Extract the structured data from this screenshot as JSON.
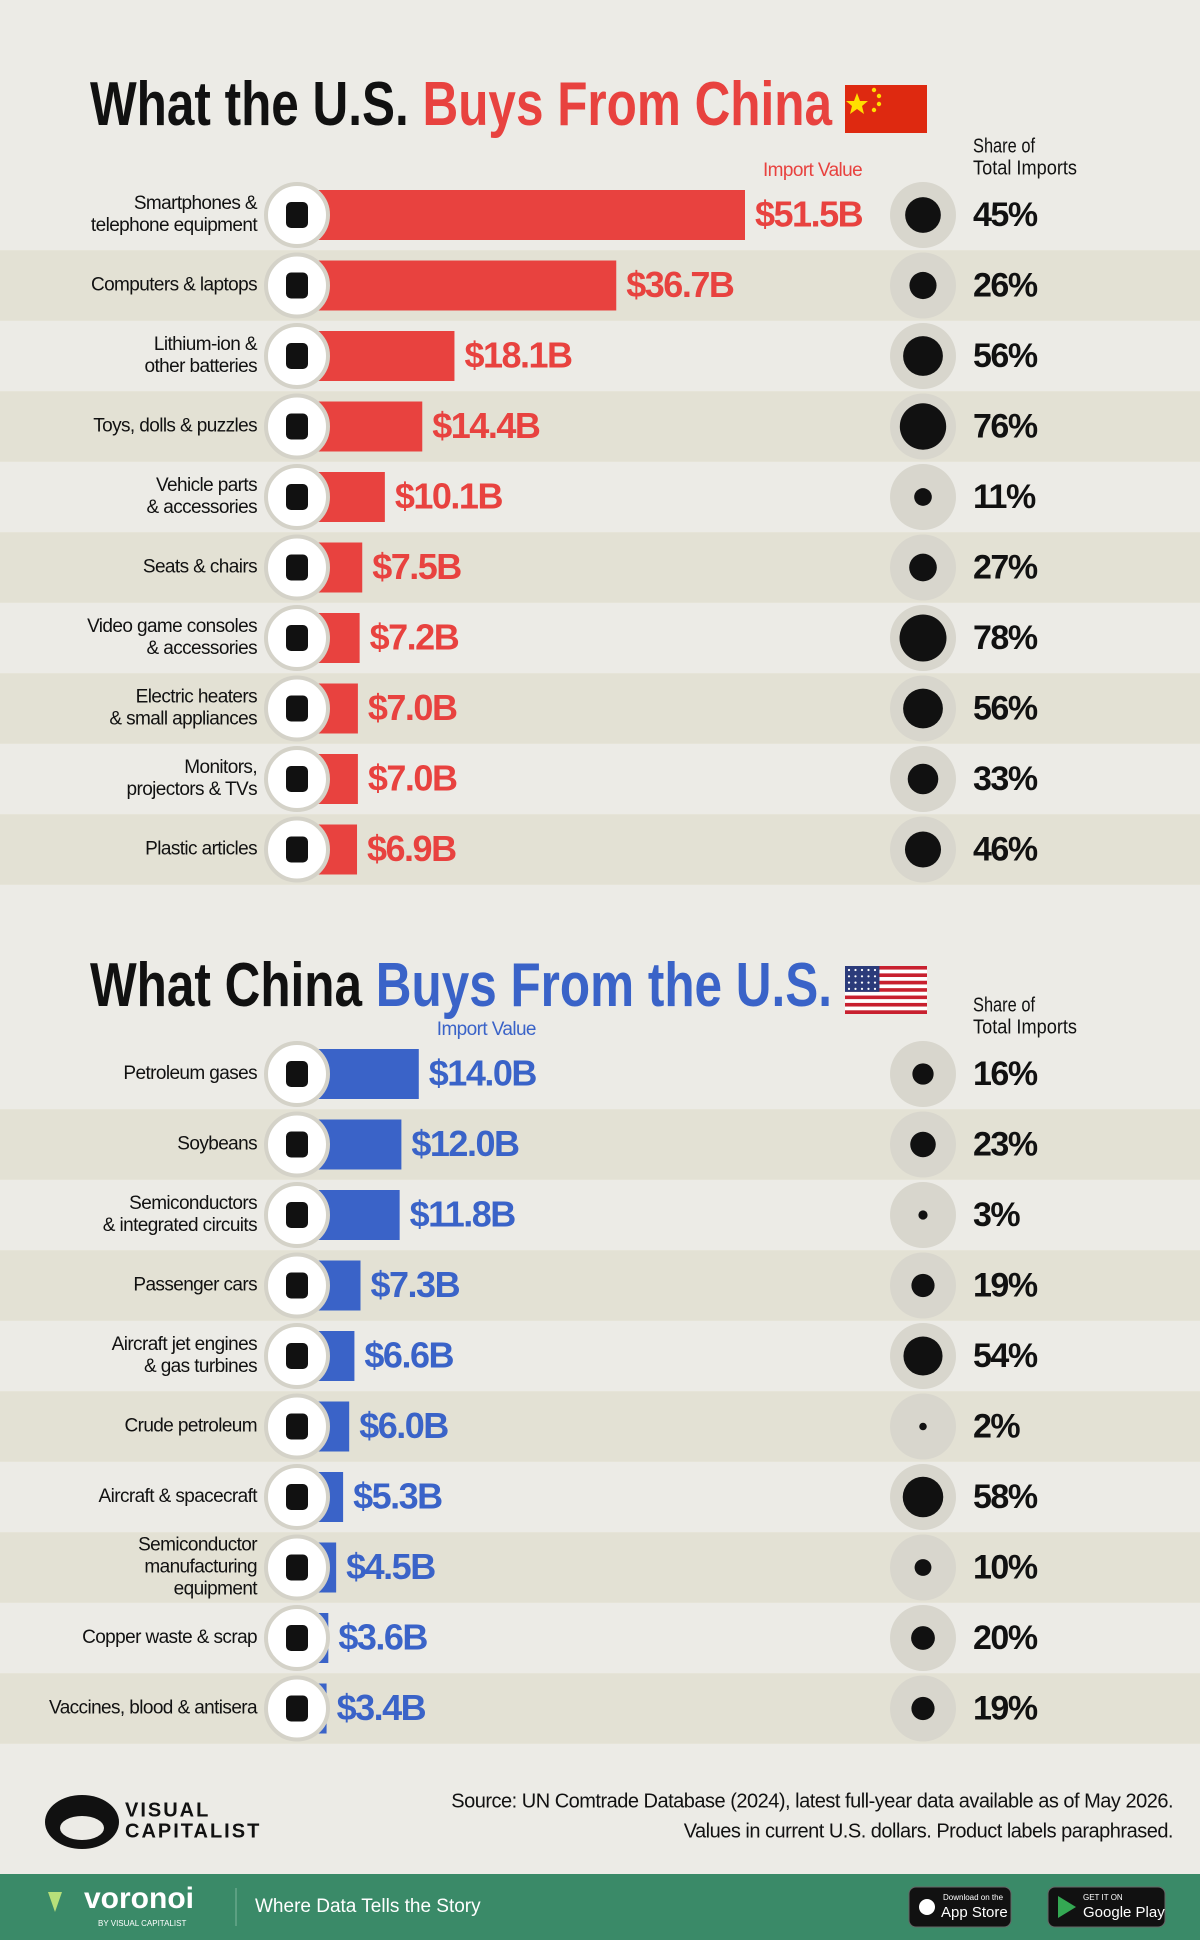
{
  "chart_data": [
    {
      "type": "bar",
      "title": "What the U.S.",
      "title_highlight": "Buys From China",
      "categories": [
        [
          "Smartphones &",
          "telephone equipment"
        ],
        [
          "Computers & laptops"
        ],
        [
          "Lithium-ion &",
          "other batteries"
        ],
        [
          "Toys, dolls & puzzles"
        ],
        [
          "Vehicle parts",
          "& accessories"
        ],
        [
          "Seats & chairs"
        ],
        [
          "Video game consoles",
          "& accessories"
        ],
        [
          "Electric heaters",
          "& small appliances"
        ],
        [
          "Monitors,",
          "projectors & TVs"
        ],
        [
          "Plastic articles"
        ]
      ],
      "series": [
        {
          "name": "Import Value",
          "color": "#e8423f",
          "values": [
            51.5,
            36.7,
            18.1,
            14.4,
            10.1,
            7.5,
            7.2,
            7.0,
            7.0,
            6.9
          ],
          "value_labels": [
            "$51.5B",
            "$36.7B",
            "$18.1B",
            "$14.4B",
            "$10.1B",
            "$7.5B",
            "$7.2B",
            "$7.0B",
            "$7.0B",
            "$6.9B"
          ]
        }
      ],
      "share": {
        "name": [
          "Share of",
          "Total Imports"
        ],
        "color": "#111111",
        "values": [
          45,
          26,
          56,
          76,
          11,
          27,
          78,
          56,
          33,
          46
        ],
        "value_labels": [
          "45%",
          "26%",
          "56%",
          "76%",
          "11%",
          "27%",
          "78%",
          "56%",
          "33%",
          "46%"
        ]
      }
    },
    {
      "type": "bar",
      "title": "What China",
      "title_highlight": "Buys From the U.S.",
      "categories": [
        [
          "Petroleum gases"
        ],
        [
          "Soybeans"
        ],
        [
          "Semiconductors",
          "& integrated circuits"
        ],
        [
          "Passenger cars"
        ],
        [
          "Aircraft jet engines",
          "& gas turbines"
        ],
        [
          "Crude petroleum"
        ],
        [
          "Aircraft & spacecraft"
        ],
        [
          "Semiconductor",
          "manufacturing",
          "equipment"
        ],
        [
          "Copper waste & scrap"
        ],
        [
          "Vaccines, blood & antisera"
        ]
      ],
      "series": [
        {
          "name": "Import Value",
          "color": "#3a63c8",
          "values": [
            14.0,
            12.0,
            11.8,
            7.3,
            6.6,
            6.0,
            5.3,
            4.5,
            3.6,
            3.4
          ],
          "value_labels": [
            "$14.0B",
            "$12.0B",
            "$11.8B",
            "$7.3B",
            "$6.6B",
            "$6.0B",
            "$5.3B",
            "$4.5B",
            "$3.6B",
            "$3.4B"
          ]
        }
      ],
      "share": {
        "name": [
          "Share of",
          "Total Imports"
        ],
        "color": "#111111",
        "values": [
          16,
          23,
          3,
          19,
          54,
          2,
          58,
          10,
          20,
          19
        ],
        "value_labels": [
          "16%",
          "23%",
          "3%",
          "19%",
          "54%",
          "2%",
          "58%",
          "10%",
          "20%",
          "19%"
        ]
      }
    }
  ],
  "footer": {
    "source": [
      "Source: UN Comtrade Database (2024), latest full-year data available as of May 2026.",
      "Values in current U.S. dollars. Product labels paraphrased."
    ],
    "logo": [
      "VISUAL",
      "CAPITALIST"
    ],
    "brand": "voronoi",
    "brand_sub": "BY VISUAL CAPITALIST",
    "tagline": "Where Data Tells the Story",
    "app_store": [
      "Download on the",
      "App Store"
    ],
    "google_play": [
      "GET IT ON",
      "Google Play"
    ]
  }
}
